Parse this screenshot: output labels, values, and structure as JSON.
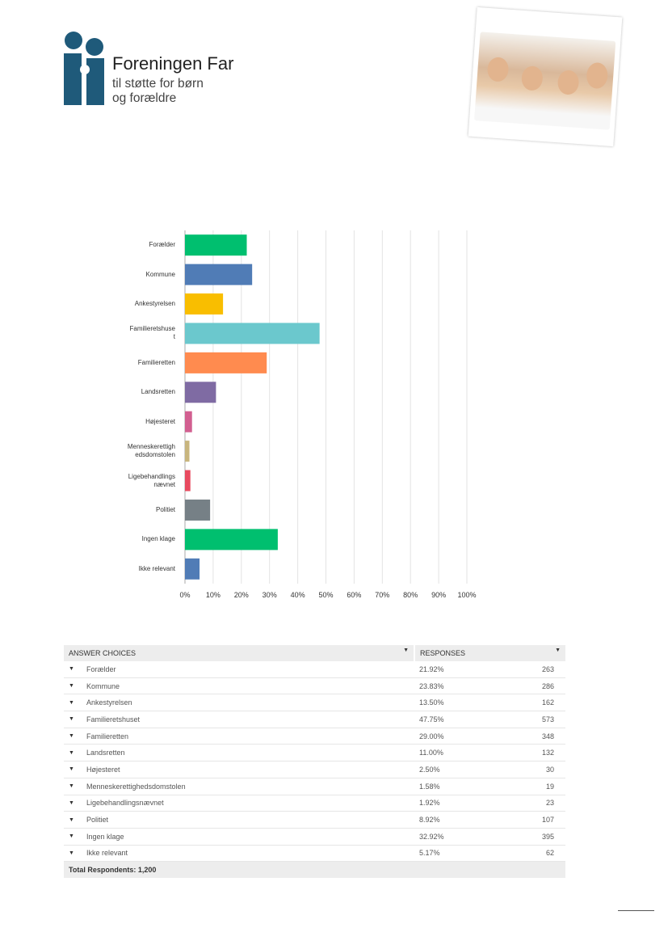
{
  "logo": {
    "name": "Foreningen Far",
    "tagline_1": "til støtte for børn",
    "tagline_2": "og forældre",
    "color": "#1f5a7a"
  },
  "chart_data": {
    "type": "bar",
    "orientation": "horizontal",
    "categories": [
      "Forælder",
      "Kommune",
      "Ankestyrelsen",
      "Familieretshuset",
      "Familieretten",
      "Landsretten",
      "Højesteret",
      "Menneskerettighedsdomstolen",
      "Ligebehandlingsnævnet",
      "Politiet",
      "Ingen klage",
      "Ikke relevant"
    ],
    "category_labels": [
      [
        "Forælder"
      ],
      [
        "Kommune"
      ],
      [
        "Ankestyrelsen"
      ],
      [
        "Familieretshuse",
        "t"
      ],
      [
        "Familieretten"
      ],
      [
        "Landsretten"
      ],
      [
        "Højesteret"
      ],
      [
        "Menneskerettigh",
        "edsdomstolen"
      ],
      [
        "Ligebehandlings",
        "nævnet"
      ],
      [
        "Politiet"
      ],
      [
        "Ingen klage"
      ],
      [
        "Ikke relevant"
      ]
    ],
    "values": [
      21.92,
      23.83,
      13.5,
      47.75,
      29.0,
      11.0,
      2.5,
      1.58,
      1.92,
      8.92,
      32.92,
      5.17
    ],
    "colors": [
      "#00bf6f",
      "#507cb6",
      "#f9be00",
      "#6bc8cd",
      "#ff8b4f",
      "#7f6ba3",
      "#d25f90",
      "#c8b57e",
      "#e84a5f",
      "#768086",
      "#00bf6f",
      "#507cb6"
    ],
    "xlim": [
      0,
      100
    ],
    "xticks": [
      "0%",
      "10%",
      "20%",
      "30%",
      "40%",
      "50%",
      "60%",
      "70%",
      "80%",
      "90%",
      "100%"
    ],
    "grid": true
  },
  "table": {
    "headers": [
      "ANSWER CHOICES",
      "RESPONSES"
    ],
    "rows": [
      [
        "Forælder",
        "21.92%",
        "263"
      ],
      [
        "Kommune",
        "23.83%",
        "286"
      ],
      [
        "Ankestyrelsen",
        "13.50%",
        "162"
      ],
      [
        "Familieretshuset",
        "47.75%",
        "573"
      ],
      [
        "Familieretten",
        "29.00%",
        "348"
      ],
      [
        "Landsretten",
        "11.00%",
        "132"
      ],
      [
        "Højesteret",
        "2.50%",
        "30"
      ],
      [
        "Menneskerettighedsdomstolen",
        "1.58%",
        "19"
      ],
      [
        "Ligebehandlingsnævnet",
        "1.92%",
        "23"
      ],
      [
        "Politiet",
        "8.92%",
        "107"
      ],
      [
        "Ingen klage",
        "32.92%",
        "395"
      ],
      [
        "Ikke relevant",
        "5.17%",
        "62"
      ]
    ],
    "total": "Total Respondents: 1,200"
  }
}
